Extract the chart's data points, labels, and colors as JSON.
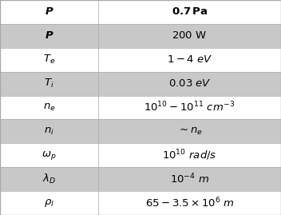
{
  "rows": [
    {
      "label": "$\\boldsymbol{P}$",
      "value": "$\\mathbf{0.7}\\,\\mathbf{Pa}$",
      "bg": "#ffffff"
    },
    {
      "label": "$\\boldsymbol{P}$",
      "value": "$200\\ \\mathrm{W}$",
      "bg": "#c8c8c8"
    },
    {
      "label": "$\\boldsymbol{T_e}$",
      "value": "$1-4\\ \\mathit{eV}$",
      "bg": "#ffffff"
    },
    {
      "label": "$\\boldsymbol{T_i}$",
      "value": "$0.03\\ \\mathit{eV}$",
      "bg": "#c8c8c8"
    },
    {
      "label": "$\\boldsymbol{n_e}$",
      "value": "$10^{10}-10^{11}\\ \\mathit{cm}^{-3}$",
      "bg": "#ffffff"
    },
    {
      "label": "$\\boldsymbol{n_i}$",
      "value": "$\\sim n_e$",
      "bg": "#c8c8c8"
    },
    {
      "label": "$\\boldsymbol{\\omega_p}$",
      "value": "$10^{10}\\ \\mathit{rad/s}$",
      "bg": "#ffffff"
    },
    {
      "label": "$\\boldsymbol{\\lambda_D}$",
      "value": "$10^{-4}\\ m$",
      "bg": "#c8c8c8"
    },
    {
      "label": "$\\boldsymbol{\\rho_l}$",
      "value": "$65-3.5\\times10^{6}\\ m$",
      "bg": "#ffffff"
    }
  ],
  "col_split": 0.35,
  "figsize": [
    3.52,
    2.69
  ],
  "dpi": 100,
  "font_size": 9.5,
  "border_color": "#aaaaaa"
}
